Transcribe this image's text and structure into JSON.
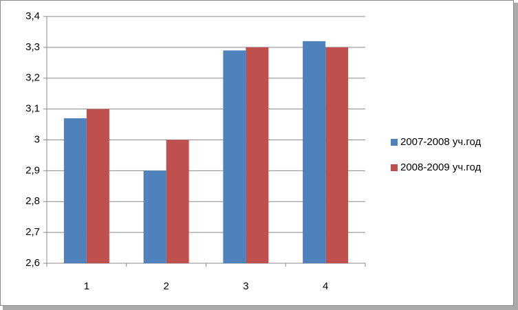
{
  "chart_data": {
    "type": "bar",
    "categories": [
      "1",
      "2",
      "3",
      "4"
    ],
    "series": [
      {
        "name": "2007-2008 уч.год",
        "color": "#4f81bd",
        "values": [
          3.07,
          2.9,
          3.29,
          3.32
        ]
      },
      {
        "name": "2008-2009 уч.год",
        "color": "#c0504d",
        "values": [
          3.1,
          3.0,
          3.3,
          3.3
        ]
      }
    ],
    "ylim": [
      2.6,
      3.4
    ],
    "yticks": [
      {
        "value": 2.6,
        "label": "2,6"
      },
      {
        "value": 2.7,
        "label": "2,7"
      },
      {
        "value": 2.8,
        "label": "2,8"
      },
      {
        "value": 2.9,
        "label": "2,9"
      },
      3,
      {
        "value": 3.1,
        "label": "3,1"
      },
      {
        "value": 3.2,
        "label": "3,2"
      },
      {
        "value": 3.3,
        "label": "3,3"
      },
      {
        "value": 3.4,
        "label": "3,4"
      }
    ],
    "grid": true,
    "legend": "right"
  }
}
